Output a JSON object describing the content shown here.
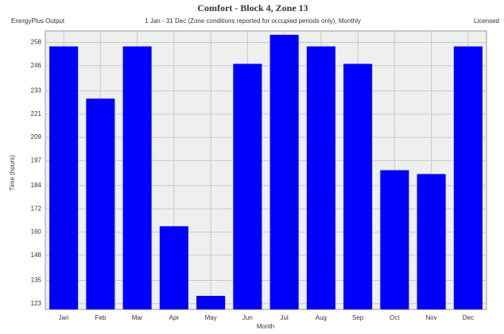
{
  "chart_data": {
    "type": "bar",
    "title": "Comfort - Block 4, Zone 13",
    "subtitle": "1 Jan - 31 Dec (Zone conditions reported for occupied periods only), Monthly",
    "source": "EnergyPlus Output",
    "license": "Licensed",
    "x_label": "Month",
    "y_label": "Time (hours)",
    "categories": [
      "Jan",
      "Feb",
      "Mar",
      "Apr",
      "May",
      "Jun",
      "Jul",
      "Aug",
      "Sep",
      "Oct",
      "Nov",
      "Dec"
    ],
    "values": [
      256,
      229,
      256,
      163,
      127,
      247,
      262,
      256,
      247,
      192,
      190,
      256
    ],
    "color": "#0000ff",
    "ylim": [
      120,
      264
    ],
    "yticks": [
      123,
      135,
      148,
      160,
      172,
      184,
      197,
      209,
      221,
      233,
      246,
      258
    ],
    "grid": true
  }
}
